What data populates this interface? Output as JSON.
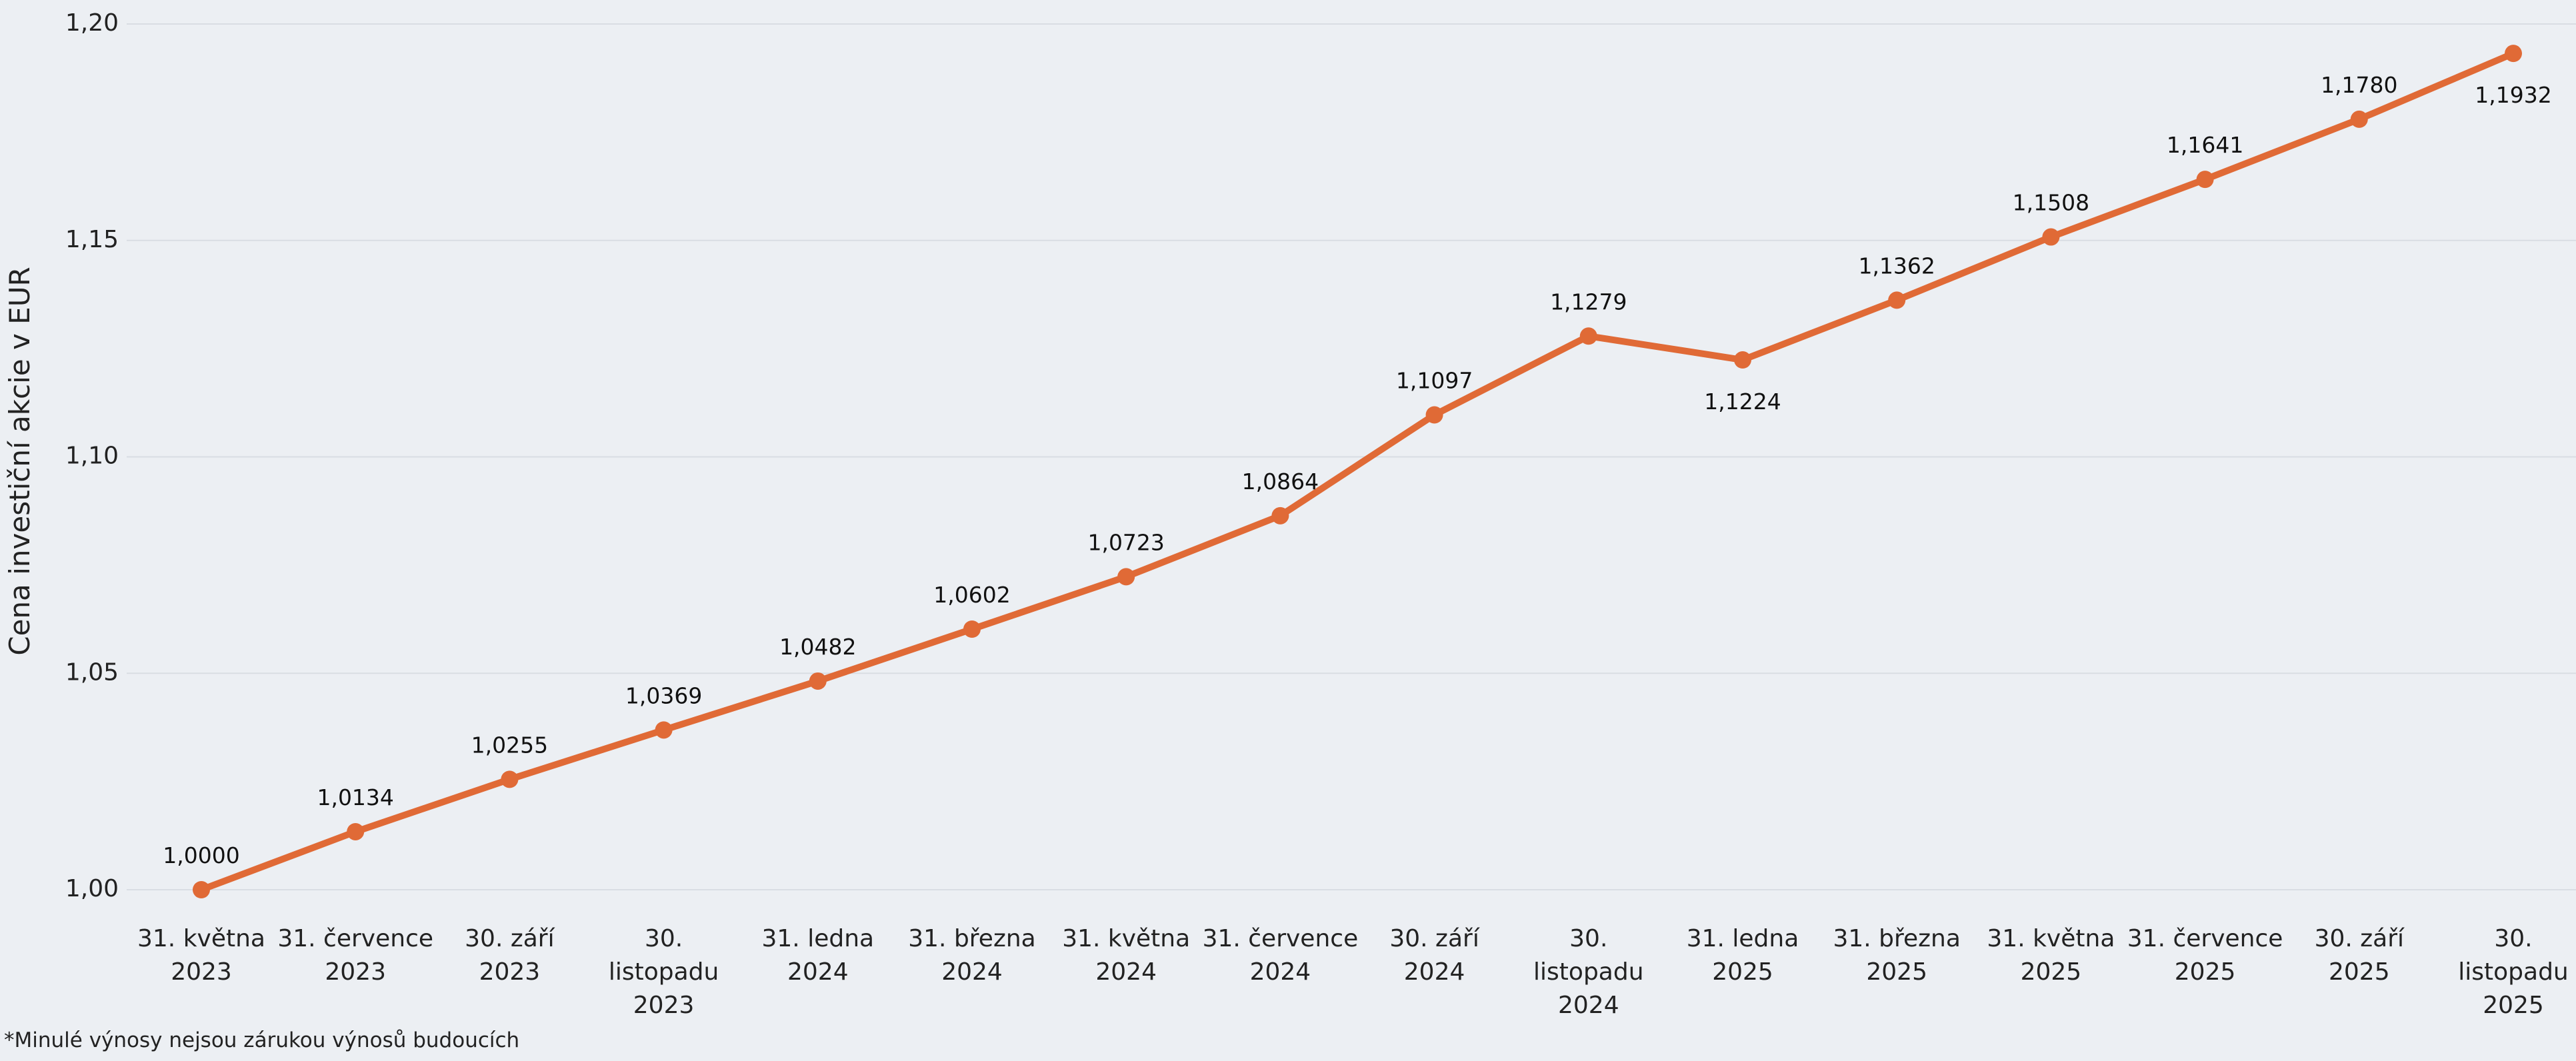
{
  "chart_data": {
    "type": "line",
    "title": "",
    "xlabel": "",
    "ylabel": "Cena investiční akcie v EUR",
    "ylim": [
      1.0,
      1.2
    ],
    "y_ticks": [
      1.0,
      1.05,
      1.1,
      1.15,
      1.2
    ],
    "y_tick_labels": [
      "1,00",
      "1,05",
      "1,10",
      "1,15",
      "1,20"
    ],
    "grid": true,
    "color": "#e06a36",
    "categories": [
      [
        "31. května",
        "2023"
      ],
      [
        "31. července",
        "2023"
      ],
      [
        "30. září",
        "2023"
      ],
      [
        "30.",
        "listopadu",
        "2023"
      ],
      [
        "31. ledna",
        "2024"
      ],
      [
        "31. března",
        "2024"
      ],
      [
        "31. května",
        "2024"
      ],
      [
        "31. července",
        "2024"
      ],
      [
        "30. září",
        "2024"
      ],
      [
        "30.",
        "listopadu",
        "2024"
      ],
      [
        "31. ledna",
        "2025"
      ],
      [
        "31. března",
        "2025"
      ],
      [
        "31. května",
        "2025"
      ],
      [
        "31. července",
        "2025"
      ],
      [
        "30. září",
        "2025"
      ],
      [
        "30.",
        "listopadu",
        "2025"
      ]
    ],
    "values": [
      1.0,
      1.0134,
      1.0255,
      1.0369,
      1.0482,
      1.0602,
      1.0723,
      1.0864,
      1.1097,
      1.1279,
      1.1224,
      1.1362,
      1.1508,
      1.1641,
      1.178,
      1.1932
    ],
    "value_labels": [
      "1,0000",
      "1,0134",
      "1,0255",
      "1,0369",
      "1,0482",
      "1,0602",
      "1,0723",
      "1,0864",
      "1,1097",
      "1,1279",
      "1,1224",
      "1,1362",
      "1,1508",
      "1,1641",
      "1,1780",
      "1,1932"
    ],
    "label_below": [
      10,
      15
    ]
  },
  "footnote": "*Minulé výnosy nejsou zárukou výnosů budoucích"
}
